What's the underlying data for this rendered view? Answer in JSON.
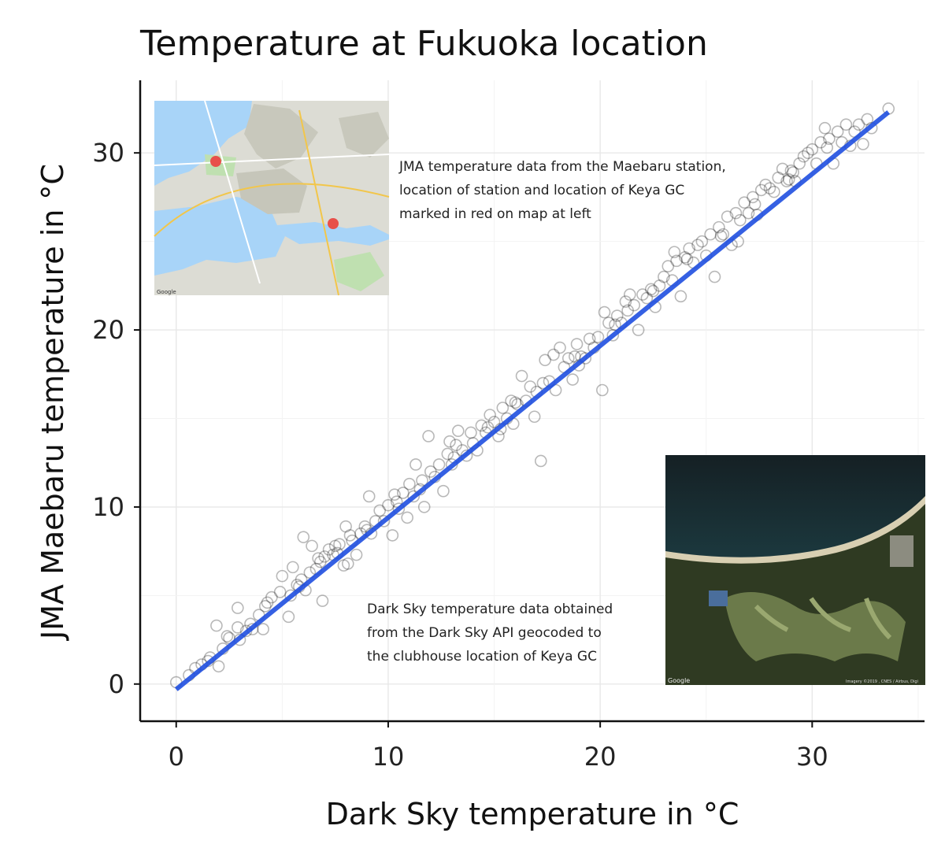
{
  "chart_data": {
    "type": "scatter",
    "title": "Temperature at Fukuoka location",
    "xlabel": "Dark Sky temperature in °C",
    "ylabel": "JMA Maebaru temperature in °C",
    "xlim": [
      -1.7,
      35.3
    ],
    "ylim": [
      -2.1,
      34.1
    ],
    "x_ticks": [
      0,
      10,
      20,
      30
    ],
    "y_ticks": [
      0,
      10,
      20,
      30
    ],
    "grid": true,
    "fit_line": {
      "x": [
        0,
        33.6
      ],
      "y": [
        -0.3,
        32.3
      ],
      "color": "#1f4fe0"
    },
    "points": [
      [
        0,
        0.1
      ],
      [
        0.6,
        0.5
      ],
      [
        0.9,
        0.9
      ],
      [
        1.2,
        1.1
      ],
      [
        1.6,
        1.5
      ],
      [
        1.9,
        3.3
      ],
      [
        2.0,
        1.0
      ],
      [
        2.2,
        2.0
      ],
      [
        2.5,
        2.6
      ],
      [
        2.9,
        3.2
      ],
      [
        2.9,
        4.3
      ],
      [
        3.0,
        2.5
      ],
      [
        3.3,
        3.0
      ],
      [
        3.5,
        3.4
      ],
      [
        3.9,
        3.9
      ],
      [
        4.1,
        3.1
      ],
      [
        4.3,
        4.6
      ],
      [
        4.5,
        4.9
      ],
      [
        4.9,
        5.2
      ],
      [
        5.0,
        6.1
      ],
      [
        5.3,
        3.8
      ],
      [
        5.4,
        5.0
      ],
      [
        5.5,
        6.6
      ],
      [
        5.7,
        5.6
      ],
      [
        5.9,
        5.9
      ],
      [
        6.0,
        8.3
      ],
      [
        6.1,
        5.3
      ],
      [
        6.3,
        6.3
      ],
      [
        6.4,
        7.8
      ],
      [
        6.6,
        6.5
      ],
      [
        6.7,
        7.1
      ],
      [
        6.9,
        4.7
      ],
      [
        7.0,
        7.2
      ],
      [
        7.2,
        7.6
      ],
      [
        7.4,
        7.3
      ],
      [
        7.5,
        7.8
      ],
      [
        7.7,
        7.9
      ],
      [
        7.9,
        6.7
      ],
      [
        8.0,
        8.9
      ],
      [
        8.1,
        6.8
      ],
      [
        8.3,
        8.1
      ],
      [
        8.5,
        7.3
      ],
      [
        8.7,
        8.5
      ],
      [
        8.9,
        8.9
      ],
      [
        9.1,
        10.6
      ],
      [
        9.2,
        8.5
      ],
      [
        9.4,
        9.2
      ],
      [
        9.6,
        9.8
      ],
      [
        9.8,
        9.2
      ],
      [
        10.0,
        10.1
      ],
      [
        10.2,
        8.4
      ],
      [
        10.3,
        10.7
      ],
      [
        10.5,
        9.9
      ],
      [
        10.7,
        10.8
      ],
      [
        10.9,
        9.4
      ],
      [
        11.0,
        11.3
      ],
      [
        11.2,
        10.6
      ],
      [
        11.3,
        12.4
      ],
      [
        11.5,
        11.0
      ],
      [
        11.7,
        10.0
      ],
      [
        11.9,
        14.0
      ],
      [
        12.0,
        12.0
      ],
      [
        12.2,
        11.7
      ],
      [
        12.4,
        12.4
      ],
      [
        12.6,
        10.9
      ],
      [
        12.8,
        13.0
      ],
      [
        13.0,
        12.4
      ],
      [
        13.2,
        13.5
      ],
      [
        13.3,
        14.3
      ],
      [
        13.5,
        13.2
      ],
      [
        13.7,
        12.9
      ],
      [
        13.9,
        14.2
      ],
      [
        14.0,
        13.6
      ],
      [
        14.2,
        13.2
      ],
      [
        14.4,
        14.6
      ],
      [
        14.6,
        14.2
      ],
      [
        14.8,
        15.2
      ],
      [
        15.0,
        14.8
      ],
      [
        15.2,
        14.0
      ],
      [
        15.4,
        15.6
      ],
      [
        15.6,
        15.0
      ],
      [
        15.8,
        16.0
      ],
      [
        15.9,
        14.7
      ],
      [
        16.1,
        15.8
      ],
      [
        16.3,
        17.4
      ],
      [
        16.5,
        16.0
      ],
      [
        16.7,
        16.8
      ],
      [
        16.9,
        15.1
      ],
      [
        17.0,
        16.5
      ],
      [
        17.2,
        12.6
      ],
      [
        17.4,
        18.3
      ],
      [
        17.6,
        17.1
      ],
      [
        17.8,
        18.6
      ],
      [
        17.9,
        16.6
      ],
      [
        18.1,
        19.0
      ],
      [
        18.3,
        17.9
      ],
      [
        18.5,
        18.4
      ],
      [
        18.7,
        17.2
      ],
      [
        18.9,
        19.2
      ],
      [
        19.1,
        18.5
      ],
      [
        19.3,
        18.4
      ],
      [
        19.5,
        19.5
      ],
      [
        19.7,
        19.0
      ],
      [
        19.9,
        19.6
      ],
      [
        20.1,
        16.6
      ],
      [
        20.2,
        21.0
      ],
      [
        20.4,
        20.4
      ],
      [
        20.6,
        19.7
      ],
      [
        20.8,
        20.8
      ],
      [
        21.0,
        20.4
      ],
      [
        21.2,
        21.6
      ],
      [
        21.4,
        22.0
      ],
      [
        21.6,
        21.4
      ],
      [
        21.8,
        20.0
      ],
      [
        22.0,
        22.0
      ],
      [
        22.2,
        21.8
      ],
      [
        22.4,
        22.3
      ],
      [
        22.6,
        21.3
      ],
      [
        22.8,
        22.5
      ],
      [
        23.0,
        23.0
      ],
      [
        23.2,
        23.6
      ],
      [
        23.4,
        22.8
      ],
      [
        23.6,
        23.9
      ],
      [
        23.8,
        21.9
      ],
      [
        24.0,
        24.1
      ],
      [
        24.2,
        24.6
      ],
      [
        24.4,
        23.8
      ],
      [
        24.6,
        24.8
      ],
      [
        24.8,
        25.0
      ],
      [
        25.0,
        24.2
      ],
      [
        25.2,
        25.4
      ],
      [
        25.4,
        23.0
      ],
      [
        25.6,
        25.8
      ],
      [
        25.8,
        25.4
      ],
      [
        26.0,
        26.4
      ],
      [
        26.2,
        24.8
      ],
      [
        26.4,
        26.6
      ],
      [
        26.6,
        26.2
      ],
      [
        26.8,
        27.2
      ],
      [
        27.0,
        26.6
      ],
      [
        27.2,
        27.5
      ],
      [
        27.4,
        26.5
      ],
      [
        27.6,
        27.9
      ],
      [
        27.8,
        28.2
      ],
      [
        28.0,
        28.0
      ],
      [
        28.2,
        27.8
      ],
      [
        28.4,
        28.6
      ],
      [
        28.6,
        29.1
      ],
      [
        28.8,
        28.4
      ],
      [
        29.0,
        29.0
      ],
      [
        29.2,
        28.4
      ],
      [
        29.4,
        29.4
      ],
      [
        29.6,
        29.8
      ],
      [
        29.8,
        30.0
      ],
      [
        30.0,
        30.2
      ],
      [
        30.2,
        29.4
      ],
      [
        30.4,
        30.6
      ],
      [
        30.6,
        31.4
      ],
      [
        30.8,
        30.8
      ],
      [
        31.0,
        29.4
      ],
      [
        31.2,
        31.2
      ],
      [
        31.4,
        30.6
      ],
      [
        31.6,
        31.6
      ],
      [
        31.8,
        30.4
      ],
      [
        32.0,
        31.2
      ],
      [
        32.2,
        31.6
      ],
      [
        32.4,
        30.5
      ],
      [
        32.6,
        31.9
      ],
      [
        32.8,
        31.4
      ],
      [
        33.6,
        32.5
      ],
      [
        5.8,
        5.5
      ],
      [
        6.8,
        6.9
      ],
      [
        7.6,
        7.4
      ],
      [
        8.2,
        8.4
      ],
      [
        9.0,
        8.7
      ],
      [
        10.4,
        10.3
      ],
      [
        11.6,
        11.5
      ],
      [
        13.1,
        12.8
      ],
      [
        14.7,
        14.5
      ],
      [
        16.0,
        15.9
      ],
      [
        17.3,
        17.0
      ],
      [
        18.8,
        18.5
      ],
      [
        20.7,
        20.3
      ],
      [
        21.3,
        21.1
      ],
      [
        22.5,
        22.2
      ],
      [
        24.1,
        24.0
      ],
      [
        25.7,
        25.3
      ],
      [
        27.3,
        27.1
      ],
      [
        29.1,
        28.9
      ],
      [
        30.7,
        30.3
      ],
      [
        4.2,
        4.4
      ],
      [
        3.6,
        3.1
      ],
      [
        2.4,
        2.7
      ],
      [
        1.5,
        1.3
      ],
      [
        12.9,
        13.7
      ],
      [
        15.3,
        14.4
      ],
      [
        19.0,
        18.0
      ],
      [
        23.5,
        24.4
      ],
      [
        26.5,
        25.0
      ],
      [
        28.9,
        28.5
      ]
    ],
    "annotations": [
      {
        "lines": [
          "JMA temperature data from the Maebaru station,",
          "location of station and location of Keya GC",
          "marked in red on map at left"
        ]
      },
      {
        "lines": [
          "Dark Sky temperature data obtained",
          "from the Dark Sky API geocoded to",
          "the clubhouse location of Keya GC"
        ]
      }
    ],
    "images": [
      {
        "name": "street-map-image",
        "watermark": "Google"
      },
      {
        "name": "satellite-image",
        "watermark": "Google",
        "credit": "Imagery ©2019 , CNES / Airbus, Digi"
      }
    ]
  }
}
